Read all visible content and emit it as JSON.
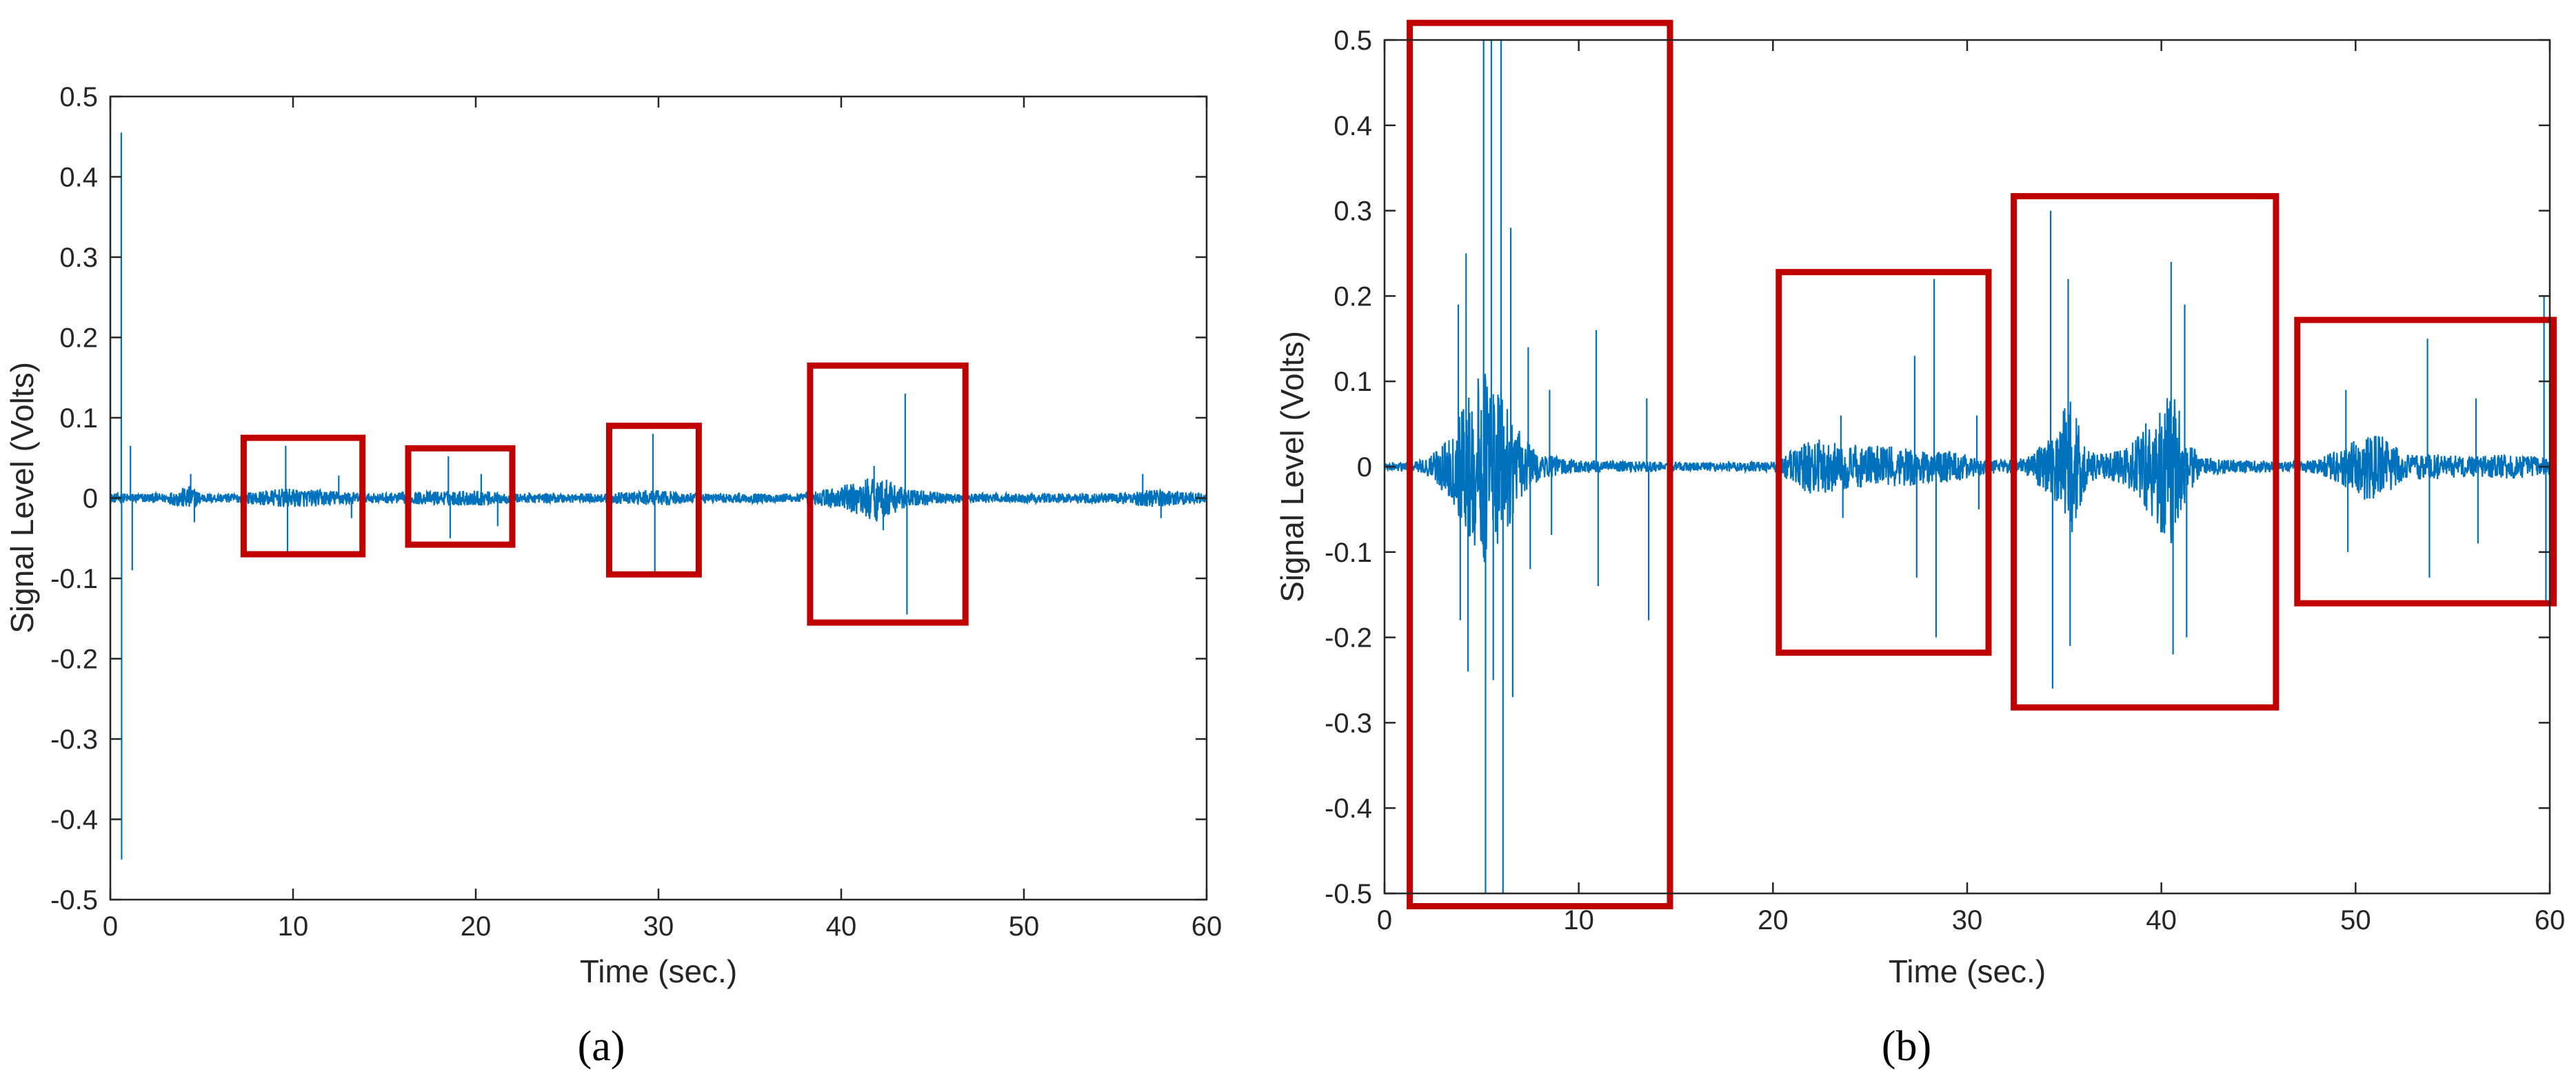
{
  "figure": {
    "panels": [
      "(a)",
      "(b)"
    ]
  },
  "colors": {
    "signal": "#0072BD",
    "highlight_box": "#C00000",
    "axes": "#262626"
  },
  "chart_data": [
    {
      "type": "line",
      "panel": "(a)",
      "xlabel": "Time (sec.)",
      "ylabel": "Signal Level (Volts)",
      "xlim": [
        0,
        60
      ],
      "ylim": [
        -0.5,
        0.5
      ],
      "xticks": [
        0,
        10,
        20,
        30,
        40,
        50,
        60
      ],
      "yticks": [
        -0.5,
        -0.4,
        -0.3,
        -0.2,
        -0.1,
        0,
        0.1,
        0.2,
        0.3,
        0.4,
        0.5
      ],
      "grid": false,
      "series": [
        {
          "color": "#0072BD",
          "envelope": [
            [
              0,
              0.006
            ],
            [
              3,
              0.006
            ],
            [
              4.4,
              0.016
            ],
            [
              5,
              0.006
            ],
            [
              7,
              0.006
            ],
            [
              9.5,
              0.012
            ],
            [
              12,
              0.01
            ],
            [
              14,
              0.006
            ],
            [
              17,
              0.008
            ],
            [
              20,
              0.01
            ],
            [
              22,
              0.006
            ],
            [
              27,
              0.006
            ],
            [
              30,
              0.01
            ],
            [
              32,
              0.006
            ],
            [
              38,
              0.006
            ],
            [
              40.5,
              0.018
            ],
            [
              42,
              0.03
            ],
            [
              43.5,
              0.012
            ],
            [
              46,
              0.006
            ],
            [
              55,
              0.006
            ],
            [
              57,
              0.012
            ],
            [
              60,
              0.006
            ]
          ],
          "spikes": [
            [
              0.6,
              0.455
            ],
            [
              0.62,
              -0.45
            ],
            [
              1.1,
              0.065
            ],
            [
              1.2,
              -0.09
            ],
            [
              4.4,
              0.03
            ],
            [
              4.6,
              -0.03
            ],
            [
              9.6,
              0.065
            ],
            [
              9.7,
              -0.07
            ],
            [
              12.5,
              0.028
            ],
            [
              13.2,
              -0.025
            ],
            [
              18.5,
              0.052
            ],
            [
              18.6,
              -0.05
            ],
            [
              20.3,
              0.03
            ],
            [
              21.2,
              -0.035
            ],
            [
              29.7,
              0.08
            ],
            [
              29.8,
              -0.095
            ],
            [
              41.8,
              0.04
            ],
            [
              42.3,
              -0.04
            ],
            [
              43.5,
              0.13
            ],
            [
              43.6,
              -0.145
            ],
            [
              56.5,
              0.03
            ],
            [
              57.5,
              -0.025
            ]
          ]
        }
      ],
      "highlight_boxes": [
        {
          "x": [
            7.3,
            13.8
          ],
          "y": [
            -0.07,
            0.075
          ]
        },
        {
          "x": [
            16.3,
            22.0
          ],
          "y": [
            -0.058,
            0.062
          ]
        },
        {
          "x": [
            27.3,
            32.2
          ],
          "y": [
            -0.095,
            0.09
          ]
        },
        {
          "x": [
            38.3,
            46.8
          ],
          "y": [
            -0.155,
            0.165
          ]
        }
      ]
    },
    {
      "type": "line",
      "panel": "(b)",
      "xlabel": "Time (sec.)",
      "ylabel": "Signal Level (Volts)",
      "xlim": [
        0,
        60
      ],
      "ylim": [
        -0.5,
        0.5
      ],
      "xticks": [
        0,
        10,
        20,
        30,
        40,
        50,
        60
      ],
      "yticks": [
        -0.5,
        -0.4,
        -0.3,
        -0.2,
        -0.1,
        0,
        0.1,
        0.2,
        0.3,
        0.4,
        0.5
      ],
      "grid": false,
      "series": [
        {
          "color": "#0072BD",
          "envelope": [
            [
              0,
              0.005
            ],
            [
              1,
              0.006
            ],
            [
              2,
              0.008
            ],
            [
              3.5,
              0.04
            ],
            [
              4.5,
              0.1
            ],
            [
              5.3,
              0.12
            ],
            [
              6.0,
              0.09
            ],
            [
              7,
              0.04
            ],
            [
              8,
              0.015
            ],
            [
              10,
              0.008
            ],
            [
              14,
              0.006
            ],
            [
              15,
              0.005
            ],
            [
              20,
              0.006
            ],
            [
              21,
              0.02
            ],
            [
              22,
              0.035
            ],
            [
              24,
              0.025
            ],
            [
              26,
              0.025
            ],
            [
              28,
              0.02
            ],
            [
              30,
              0.015
            ],
            [
              31,
              0.008
            ],
            [
              33,
              0.01
            ],
            [
              34.5,
              0.04
            ],
            [
              35.3,
              0.085
            ],
            [
              36.2,
              0.02
            ],
            [
              37,
              0.015
            ],
            [
              38,
              0.02
            ],
            [
              39.5,
              0.06
            ],
            [
              40.5,
              0.1
            ],
            [
              41.3,
              0.04
            ],
            [
              42,
              0.01
            ],
            [
              46,
              0.006
            ],
            [
              48,
              0.008
            ],
            [
              49.5,
              0.025
            ],
            [
              50.5,
              0.04
            ],
            [
              51.5,
              0.035
            ],
            [
              52.5,
              0.015
            ],
            [
              54,
              0.015
            ],
            [
              56,
              0.012
            ],
            [
              58,
              0.015
            ],
            [
              60,
              0.01
            ]
          ],
          "spikes": [
            [
              3.8,
              0.19
            ],
            [
              3.9,
              -0.18
            ],
            [
              4.2,
              0.25
            ],
            [
              4.3,
              -0.24
            ],
            [
              5.1,
              0.5
            ],
            [
              5.2,
              -0.5
            ],
            [
              5.5,
              0.5
            ],
            [
              5.6,
              -0.25
            ],
            [
              6.0,
              0.5
            ],
            [
              6.1,
              -0.5
            ],
            [
              6.5,
              0.28
            ],
            [
              6.6,
              -0.27
            ],
            [
              7.4,
              0.14
            ],
            [
              7.5,
              -0.12
            ],
            [
              8.5,
              0.09
            ],
            [
              8.6,
              -0.08
            ],
            [
              10.9,
              0.16
            ],
            [
              11.0,
              -0.14
            ],
            [
              13.5,
              0.08
            ],
            [
              13.6,
              -0.18
            ],
            [
              23.5,
              0.06
            ],
            [
              23.6,
              -0.06
            ],
            [
              27.3,
              0.13
            ],
            [
              27.4,
              -0.13
            ],
            [
              28.3,
              0.22
            ],
            [
              28.4,
              -0.2
            ],
            [
              30.5,
              0.06
            ],
            [
              30.6,
              -0.05
            ],
            [
              34.3,
              0.3
            ],
            [
              34.4,
              -0.26
            ],
            [
              35.2,
              0.22
            ],
            [
              35.3,
              -0.21
            ],
            [
              40.5,
              0.24
            ],
            [
              40.6,
              -0.22
            ],
            [
              41.2,
              0.19
            ],
            [
              41.3,
              -0.2
            ],
            [
              49.5,
              0.09
            ],
            [
              49.6,
              -0.1
            ],
            [
              53.7,
              0.15
            ],
            [
              53.8,
              -0.13
            ],
            [
              56.2,
              0.08
            ],
            [
              56.3,
              -0.09
            ],
            [
              59.7,
              0.2
            ],
            [
              59.8,
              -0.16
            ]
          ]
        }
      ],
      "highlight_boxes": [
        {
          "x": [
            1.3,
            14.7
          ],
          "y": [
            -0.515,
            0.52
          ]
        },
        {
          "x": [
            20.3,
            31.1
          ],
          "y": [
            -0.218,
            0.228
          ]
        },
        {
          "x": [
            32.4,
            45.9
          ],
          "y": [
            -0.282,
            0.317
          ]
        },
        {
          "x": [
            47.0,
            60.2
          ],
          "y": [
            -0.16,
            0.172
          ]
        }
      ]
    }
  ]
}
